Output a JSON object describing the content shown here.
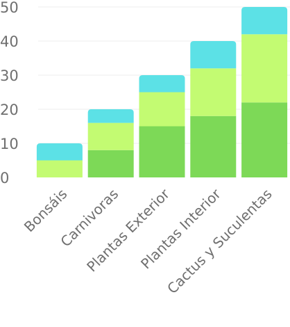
{
  "chart_data": {
    "type": "bar",
    "stacked": true,
    "categories": [
      "Bonsáis",
      "Carnivoras",
      "Plantas Exterior",
      "Plantas Interior",
      "Cactus y Suculentas"
    ],
    "series": [
      {
        "values": [
          0,
          8,
          15,
          18,
          22
        ],
        "color": "#7dd957"
      },
      {
        "values": [
          5,
          8,
          10,
          14,
          20
        ],
        "color": "#c3fb72"
      },
      {
        "values": [
          5,
          4,
          5,
          8,
          8
        ],
        "color": "#5ce1e6"
      }
    ],
    "yticks": [
      "0",
      "10",
      "20",
      "30",
      "40",
      "50"
    ],
    "ylim": [
      0,
      50
    ],
    "grid": true,
    "legend": "none"
  }
}
